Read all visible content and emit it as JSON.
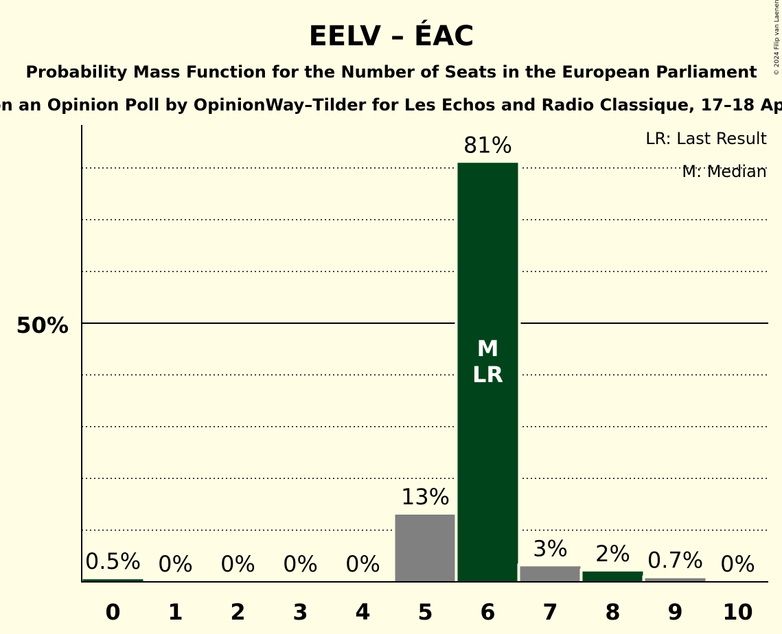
{
  "title": "EELV – ÉAC",
  "subtitle": "Probability Mass Function for the Number of Seats in the European Parliament",
  "source_line": "ed on an Opinion Poll by OpinionWay–Tilder for Les Echos and Radio Classique, 17–18 April 2",
  "copyright": "© 2024 Filip van Laenen",
  "legend": {
    "lr": "LR: Last Result",
    "m": "M: Median"
  },
  "colors": {
    "party": "#00441B",
    "other": "#808080",
    "background": "#FFFEE5"
  },
  "chart_data": {
    "type": "bar",
    "categories": [
      "0",
      "1",
      "2",
      "3",
      "4",
      "5",
      "6",
      "7",
      "8",
      "9",
      "10"
    ],
    "values": [
      0.5,
      0,
      0,
      0,
      0,
      13,
      81,
      3,
      2,
      0.7,
      0
    ],
    "value_labels": [
      "0.5%",
      "0%",
      "0%",
      "0%",
      "0%",
      "13%",
      "81%",
      "3%",
      "2%",
      "0.7%",
      "0%"
    ],
    "bar_colors": [
      "party",
      "party",
      "party",
      "party",
      "party",
      "other",
      "party",
      "other",
      "party",
      "other",
      "party"
    ],
    "ylim": [
      0,
      88
    ],
    "y_tick_labels": [
      {
        "value": 50,
        "label": "50%"
      }
    ],
    "gridlines": [
      10,
      20,
      30,
      40,
      50,
      60,
      70,
      80
    ],
    "major_gridline": 50,
    "median_seats": 6,
    "last_result_seats": 6,
    "bar_annotation": {
      "category": "6",
      "lines": [
        "M",
        "LR"
      ]
    }
  }
}
